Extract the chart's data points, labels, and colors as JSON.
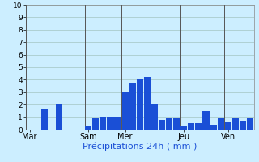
{
  "title": "",
  "xlabel": "Précipitations 24h ( mm )",
  "ylabel": "",
  "ylim": [
    0,
    10
  ],
  "yticks": [
    0,
    1,
    2,
    3,
    4,
    5,
    6,
    7,
    8,
    9,
    10
  ],
  "background_color": "#cceeff",
  "bar_color": "#1a4fd6",
  "grid_color": "#aacccc",
  "day_labels": [
    "Mar",
    "Sam",
    "Mer",
    "Jeu",
    "Ven"
  ],
  "day_positions": [
    0,
    8,
    13,
    21,
    27
  ],
  "bar_values": [
    0,
    0,
    1.7,
    0,
    2.0,
    0,
    0,
    0,
    0.3,
    0.9,
    1.0,
    1.0,
    1.0,
    3.0,
    3.7,
    4.0,
    4.2,
    2.0,
    0.8,
    0.9,
    0.9,
    0.3,
    0.5,
    0.5,
    1.5,
    0.4,
    0.9,
    0.6,
    0.9,
    0.7,
    0.9
  ],
  "num_bars": 31,
  "xlabel_fontsize": 8,
  "tick_fontsize": 6.5,
  "day_label_fontsize": 7
}
